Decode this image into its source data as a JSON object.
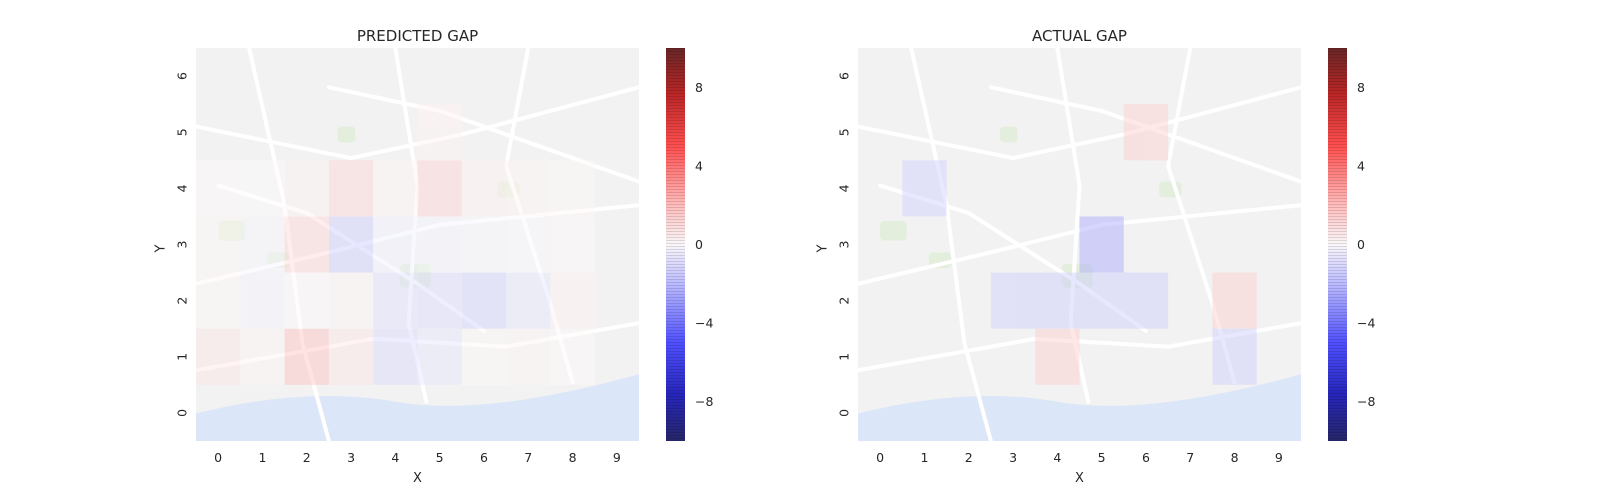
{
  "chart_data": [
    {
      "type": "heatmap",
      "title": "PREDICTED GAP",
      "xlabel": "X",
      "ylabel": "Y",
      "x_ticks": [
        "0",
        "1",
        "2",
        "3",
        "4",
        "5",
        "6",
        "7",
        "8",
        "9"
      ],
      "y_ticks": [
        "0",
        "1",
        "2",
        "3",
        "4",
        "5",
        "6"
      ],
      "xlim": [
        -0.5,
        9.5
      ],
      "ylim": [
        -0.5,
        6.5
      ],
      "background": "street map",
      "cells": [
        {
          "x": 0,
          "y": 1,
          "v": 1.0
        },
        {
          "x": 1,
          "y": 1,
          "v": 0.4
        },
        {
          "x": 2,
          "y": 1,
          "v": 2.5
        },
        {
          "x": 3,
          "y": 1,
          "v": 1.0
        },
        {
          "x": 4,
          "y": 1,
          "v": -1.5
        },
        {
          "x": 5,
          "y": 1,
          "v": -1.0
        },
        {
          "x": 6,
          "y": 1,
          "v": 0.3
        },
        {
          "x": 7,
          "y": 1,
          "v": 0.4
        },
        {
          "x": 8,
          "y": 1,
          "v": 0.2
        },
        {
          "x": 0,
          "y": 2,
          "v": 0.3
        },
        {
          "x": 1,
          "y": 2,
          "v": -0.4
        },
        {
          "x": 2,
          "y": 2,
          "v": 0.2
        },
        {
          "x": 3,
          "y": 2,
          "v": 0.4
        },
        {
          "x": 4,
          "y": 2,
          "v": -1.2
        },
        {
          "x": 5,
          "y": 2,
          "v": -1.4
        },
        {
          "x": 6,
          "y": 2,
          "v": -1.8
        },
        {
          "x": 7,
          "y": 2,
          "v": -1.0
        },
        {
          "x": 8,
          "y": 2,
          "v": 0.6
        },
        {
          "x": 0,
          "y": 3,
          "v": 0.3
        },
        {
          "x": 1,
          "y": 3,
          "v": -0.3
        },
        {
          "x": 2,
          "y": 3,
          "v": 1.6
        },
        {
          "x": 3,
          "y": 3,
          "v": -2.0
        },
        {
          "x": 4,
          "y": 3,
          "v": -0.6
        },
        {
          "x": 5,
          "y": 3,
          "v": -0.4
        },
        {
          "x": 6,
          "y": 3,
          "v": -0.3
        },
        {
          "x": 7,
          "y": 3,
          "v": -0.2
        },
        {
          "x": 8,
          "y": 3,
          "v": 0.2
        },
        {
          "x": 0,
          "y": 4,
          "v": 0.2
        },
        {
          "x": 1,
          "y": 4,
          "v": 0.1
        },
        {
          "x": 2,
          "y": 4,
          "v": 0.5
        },
        {
          "x": 3,
          "y": 4,
          "v": 1.6
        },
        {
          "x": 4,
          "y": 4,
          "v": 0.4
        },
        {
          "x": 5,
          "y": 4,
          "v": 1.8
        },
        {
          "x": 6,
          "y": 4,
          "v": 0.6
        },
        {
          "x": 7,
          "y": 4,
          "v": 0.4
        },
        {
          "x": 8,
          "y": 4,
          "v": 0.3
        },
        {
          "x": 5,
          "y": 5,
          "v": 0.5
        }
      ],
      "colorbar": {
        "ticks": [
          8,
          4,
          0,
          -4,
          -8
        ],
        "range": [
          -10,
          10
        ],
        "colormap": "seismic"
      }
    },
    {
      "type": "heatmap",
      "title": "ACTUAL GAP",
      "xlabel": "X",
      "ylabel": "Y",
      "x_ticks": [
        "0",
        "1",
        "2",
        "3",
        "4",
        "5",
        "6",
        "7",
        "8",
        "9"
      ],
      "y_ticks": [
        "0",
        "1",
        "2",
        "3",
        "4",
        "5",
        "6"
      ],
      "xlim": [
        -0.5,
        9.5
      ],
      "ylim": [
        -0.5,
        6.5
      ],
      "background": "street map",
      "cells": [
        {
          "x": 6,
          "y": 5,
          "v": 2.0
        },
        {
          "x": 1,
          "y": 4,
          "v": -2.0
        },
        {
          "x": 5,
          "y": 3,
          "v": -3.5
        },
        {
          "x": 3,
          "y": 2,
          "v": -2.0
        },
        {
          "x": 4,
          "y": 2,
          "v": -2.0
        },
        {
          "x": 5,
          "y": 2,
          "v": -2.0
        },
        {
          "x": 6,
          "y": 2,
          "v": -2.0
        },
        {
          "x": 8,
          "y": 2,
          "v": 2.0
        },
        {
          "x": 4,
          "y": 1,
          "v": 2.0
        },
        {
          "x": 8,
          "y": 1,
          "v": -2.0
        }
      ],
      "colorbar": {
        "ticks": [
          8,
          4,
          0,
          -4,
          -8
        ],
        "range": [
          -10,
          10
        ],
        "colormap": "seismic"
      }
    }
  ]
}
